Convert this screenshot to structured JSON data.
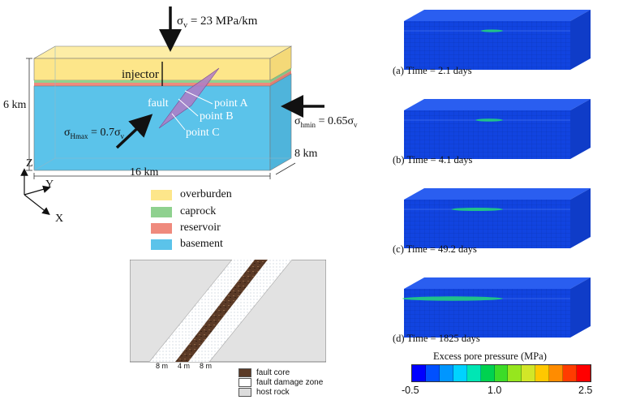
{
  "model": {
    "sigma_v": "σv = 23 MPa/km",
    "injector": "injector",
    "fault": "fault",
    "point_a": "point A",
    "point_b": "point B",
    "point_c": "point C",
    "sigma_hmax_sym": "σ",
    "sigma_hmax_sub": "Hmax",
    "sigma_hmax_rest": " = 0.7σ",
    "sigma_hmax_v": "v",
    "sigma_hmin_sym": "σ",
    "sigma_hmin_sub": "hmin",
    "sigma_hmin_rest": " = 0.65σ",
    "sigma_hmin_v": "v",
    "sigma_v_sym": "σ",
    "sigma_v_sub": "v",
    "sigma_v_rest": " = 23 MPa/km",
    "depth": "6 km",
    "length": "16 km",
    "width": "8 km",
    "axis_z": "Z",
    "axis_y": "Y",
    "axis_x": "X"
  },
  "legend": [
    {
      "label": "overburden",
      "color": "#fde68a"
    },
    {
      "label": "caprock",
      "color": "#8fd18f"
    },
    {
      "label": "reservoir",
      "color": "#ef8a7d"
    },
    {
      "label": "basement",
      "color": "#5bc3ea"
    }
  ],
  "fault_zone": {
    "dim_left": "8 m",
    "dim_mid": "4 m",
    "dim_right": "8 m",
    "legend": [
      {
        "label": "fault core"
      },
      {
        "label": "fault damage zone"
      },
      {
        "label": "host rock"
      }
    ]
  },
  "snapshots": [
    {
      "caption": "(a) Time = 2.1 days",
      "plume": 0.12
    },
    {
      "caption": "(b) Time = 4.1 days",
      "plume": 0.18
    },
    {
      "caption": "(c) Time = 49.2 days",
      "plume": 0.45
    },
    {
      "caption": "(d) Time = 1825 days",
      "plume": 1.0
    }
  ],
  "colorbar": {
    "title": "Excess pore pressure (MPa)",
    "ticks": [
      "-0.5",
      "1.0",
      "2.5"
    ],
    "colors": [
      "#0000ff",
      "#0050ff",
      "#0096ff",
      "#00d2ff",
      "#00e6b4",
      "#00d250",
      "#3cdc28",
      "#96e61e",
      "#d2e628",
      "#ffc800",
      "#ff8c00",
      "#ff3c00",
      "#ff0000"
    ]
  }
}
